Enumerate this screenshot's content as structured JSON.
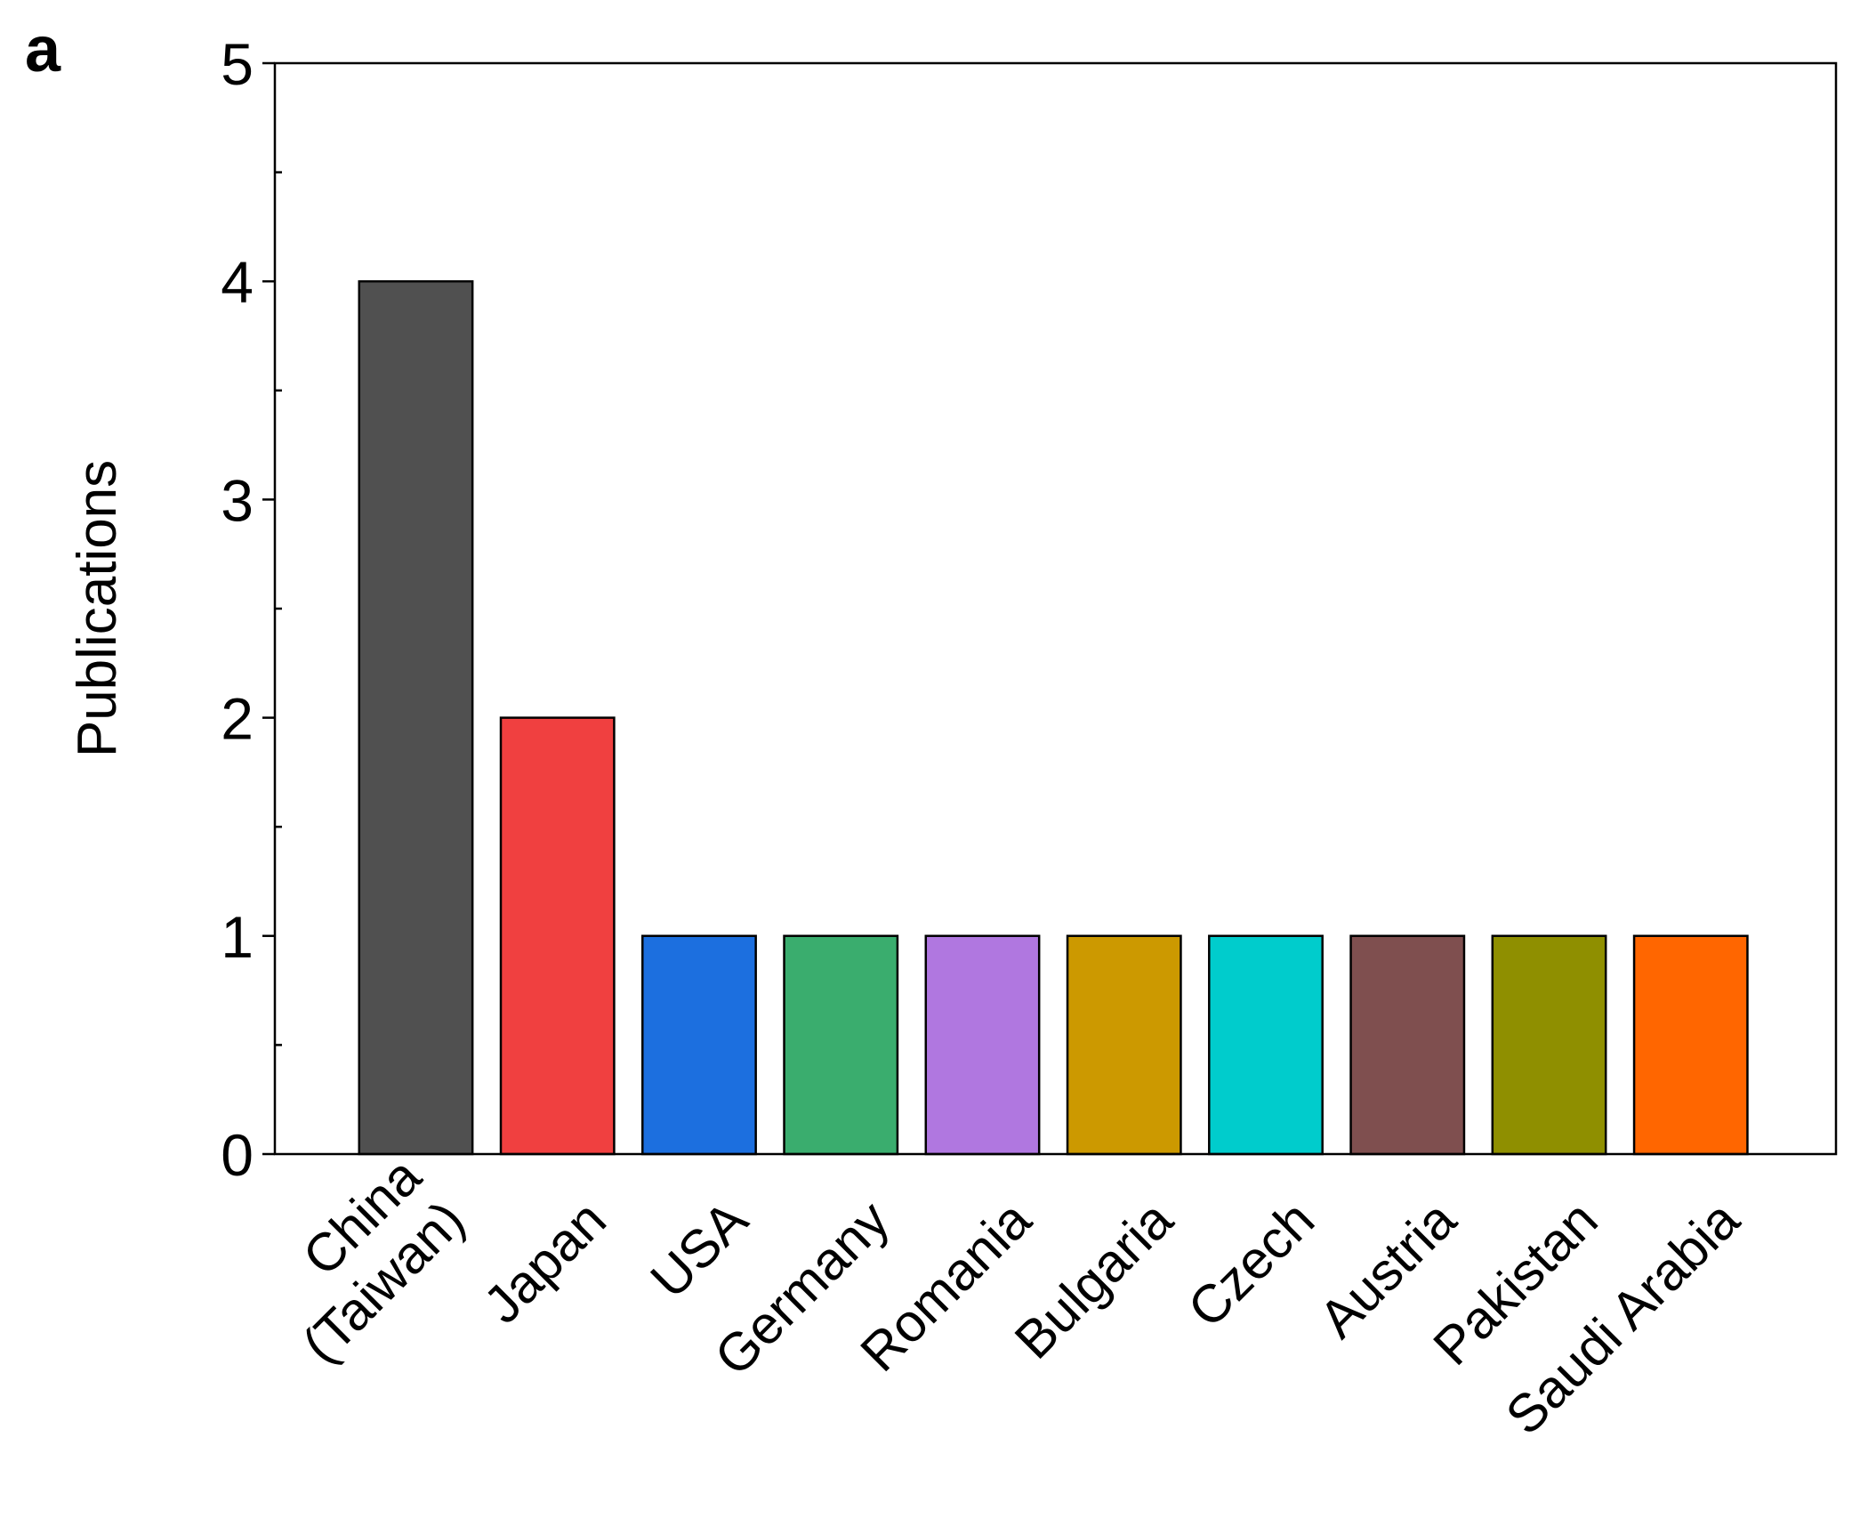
{
  "chart_data": {
    "type": "bar",
    "panel_label": "a",
    "ylabel": "Publications",
    "categories": [
      "China\n(Taiwan)",
      "Japan",
      "USA",
      "Germany",
      "Romania",
      "Bulgaria",
      "Czech",
      "Austria",
      "Pakistan",
      "Saudi Arabia"
    ],
    "values": [
      4,
      2,
      1,
      1,
      1,
      1,
      1,
      1,
      1,
      1
    ],
    "colors": [
      "#505050",
      "#f04040",
      "#1c6fdf",
      "#3aad6e",
      "#b077e0",
      "#cc9900",
      "#00cccc",
      "#7f4f4f",
      "#8f8f00",
      "#ff6600"
    ],
    "ylim": [
      0,
      5
    ],
    "yticks": [
      0,
      1,
      2,
      3,
      4,
      5
    ],
    "yticks_minor": [
      0.5,
      1.5,
      2.5,
      3.5,
      4.5
    ],
    "grid": false
  }
}
